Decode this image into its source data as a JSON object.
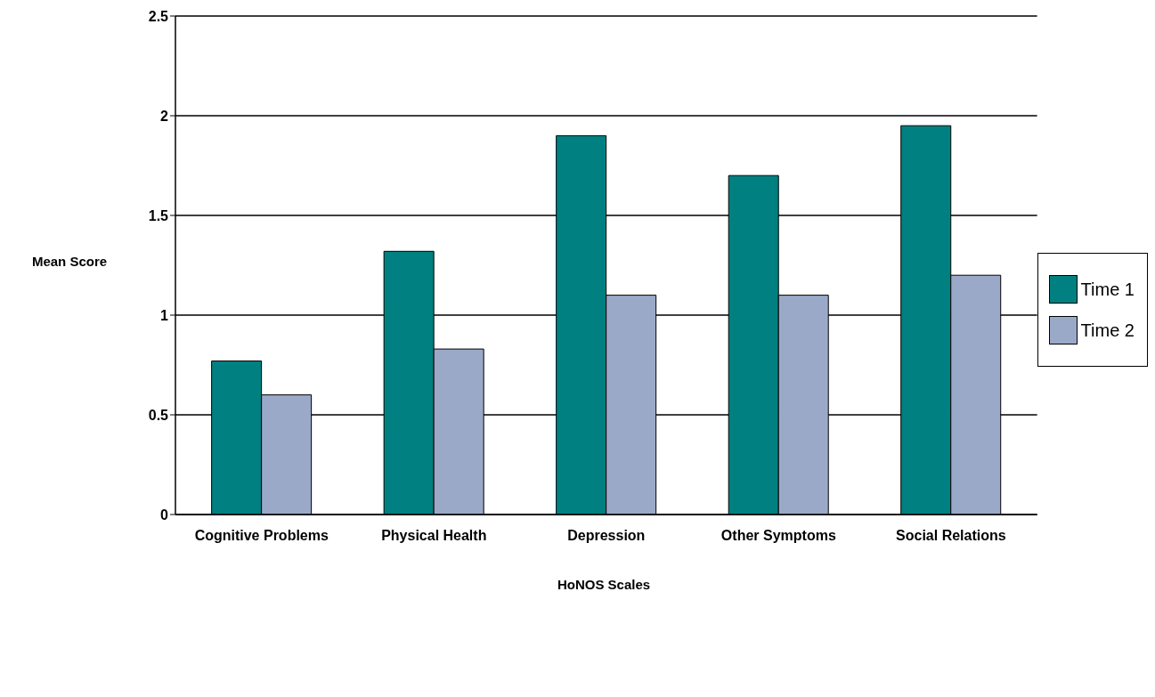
{
  "chart_data": {
    "type": "bar",
    "xlabel": "HoNOS Scales",
    "ylabel": "Mean Score",
    "categories": [
      "Cognitive Problems",
      "Physical Health",
      "Depression",
      "Other Symptoms",
      "Social Relations"
    ],
    "series": [
      {
        "name": "Time 1",
        "color": "#008080",
        "values": [
          0.77,
          1.32,
          1.9,
          1.7,
          1.95
        ]
      },
      {
        "name": "Time 2",
        "color": "#9ba9c9",
        "values": [
          0.6,
          0.83,
          1.1,
          1.1,
          1.2
        ]
      }
    ],
    "ylim": [
      0,
      2.5
    ],
    "yticks": [
      0,
      0.5,
      1,
      1.5,
      2,
      2.5
    ],
    "grid": "y",
    "legend": "right"
  }
}
